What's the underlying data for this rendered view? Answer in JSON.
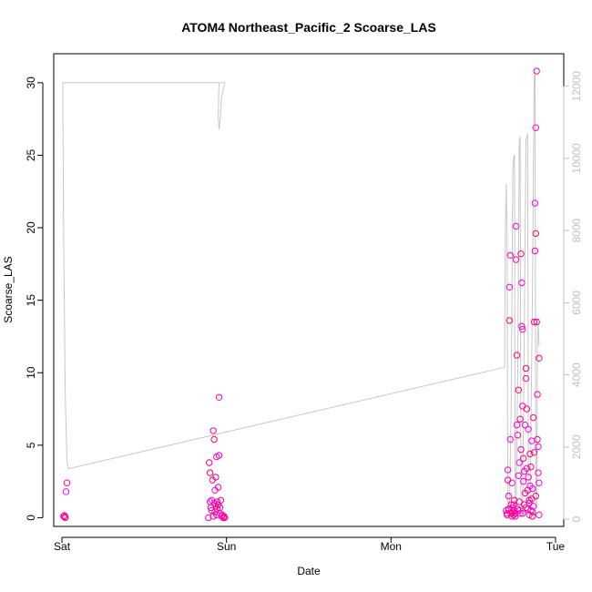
{
  "chart_data": {
    "type": "scatter",
    "title": "ATOM4 Northeast_Pacific_2 Scoarse_LAS",
    "xlabel": "Date",
    "ylabel": "Scoarse_LAS",
    "x_tick_labels": [
      "Sat",
      "Sun",
      "Mon",
      "Tue"
    ],
    "x_range_days": [
      -0.05,
      3.05
    ],
    "y_ticks": [
      0,
      5,
      10,
      15,
      20,
      25,
      30
    ],
    "ylim": [
      -0.6,
      32.0
    ],
    "y2_ticks": [
      0,
      2000,
      4000,
      6000,
      8000,
      10000,
      12000
    ],
    "y2lim": [
      -200,
      12900
    ],
    "grid": false,
    "line_color": "#c8c8c8",
    "right_axis_color": "#c0c0c0",
    "series": [
      {
        "marker": "open-circle",
        "color_range": [
          "#ff00ff",
          "#ff0050"
        ],
        "points": [
          [
            0.01,
            0.1
          ],
          [
            0.02,
            0.0
          ],
          [
            0.015,
            0.15
          ],
          [
            0.025,
            1.8
          ],
          [
            0.03,
            2.4
          ],
          [
            0.02,
            0.05
          ],
          [
            0.89,
            0.0
          ],
          [
            0.895,
            3.8
          ],
          [
            0.9,
            3.1
          ],
          [
            0.9,
            1.1
          ],
          [
            0.905,
            0.7
          ],
          [
            0.91,
            1.2
          ],
          [
            0.91,
            0.5
          ],
          [
            0.915,
            2.6
          ],
          [
            0.92,
            0.1
          ],
          [
            0.92,
            6.0
          ],
          [
            0.925,
            5.4
          ],
          [
            0.925,
            1.0
          ],
          [
            0.93,
            0.4
          ],
          [
            0.93,
            1.9
          ],
          [
            0.935,
            0.8
          ],
          [
            0.935,
            2.8
          ],
          [
            0.94,
            4.2
          ],
          [
            0.94,
            0.2
          ],
          [
            0.945,
            0.6
          ],
          [
            0.945,
            1.1
          ],
          [
            0.95,
            2.1
          ],
          [
            0.95,
            0.9
          ],
          [
            0.955,
            4.3
          ],
          [
            0.955,
            8.3
          ],
          [
            0.96,
            0.3
          ],
          [
            0.96,
            0.7
          ],
          [
            0.965,
            1.2
          ],
          [
            0.97,
            0.1
          ],
          [
            0.975,
            0.2
          ],
          [
            0.98,
            0.0
          ],
          [
            0.985,
            0.1
          ],
          [
            0.99,
            0.0
          ],
          [
            2.7,
            0.5
          ],
          [
            2.705,
            0.3
          ],
          [
            2.71,
            2.6
          ],
          [
            2.71,
            3.3
          ],
          [
            2.715,
            1.5
          ],
          [
            2.72,
            13.6
          ],
          [
            2.72,
            15.9
          ],
          [
            2.725,
            18.1
          ],
          [
            2.725,
            5.4
          ],
          [
            2.73,
            0.3
          ],
          [
            2.73,
            0.9
          ],
          [
            2.735,
            2.4
          ],
          [
            2.735,
            0.1
          ],
          [
            2.74,
            0.4
          ],
          [
            2.74,
            0.7
          ],
          [
            2.745,
            0.2
          ],
          [
            2.75,
            1.2
          ],
          [
            2.75,
            0.5
          ],
          [
            2.755,
            0.3
          ],
          [
            2.76,
            20.1
          ],
          [
            2.76,
            17.8
          ],
          [
            2.765,
            11.2
          ],
          [
            2.765,
            6.4
          ],
          [
            2.77,
            5.7
          ],
          [
            2.77,
            0.6
          ],
          [
            2.775,
            2.9
          ],
          [
            2.775,
            8.8
          ],
          [
            2.78,
            3.8
          ],
          [
            2.78,
            1.1
          ],
          [
            2.785,
            6.8
          ],
          [
            2.785,
            0.3
          ],
          [
            2.79,
            4.7
          ],
          [
            2.79,
            18.2
          ],
          [
            2.795,
            16.2
          ],
          [
            2.795,
            13.2
          ],
          [
            2.8,
            13.0
          ],
          [
            2.8,
            7.7
          ],
          [
            2.805,
            4.1
          ],
          [
            2.805,
            2.5
          ],
          [
            2.81,
            3.2
          ],
          [
            2.81,
            0.9
          ],
          [
            2.815,
            6.4
          ],
          [
            2.815,
            1.7
          ],
          [
            2.82,
            10.3
          ],
          [
            2.82,
            9.6
          ],
          [
            2.825,
            7.5
          ],
          [
            2.825,
            3.4
          ],
          [
            2.83,
            0.6
          ],
          [
            2.83,
            1.9
          ],
          [
            2.835,
            6.1
          ],
          [
            2.835,
            2.8
          ],
          [
            2.84,
            1.2
          ],
          [
            2.84,
            0.2
          ],
          [
            2.845,
            4.4
          ],
          [
            2.845,
            2.2
          ],
          [
            2.85,
            0.5
          ],
          [
            2.85,
            3.5
          ],
          [
            2.855,
            5.3
          ],
          [
            2.855,
            1.3
          ],
          [
            2.86,
            0.1
          ],
          [
            2.86,
            2.0
          ],
          [
            2.865,
            6.9
          ],
          [
            2.865,
            0.8
          ],
          [
            2.87,
            13.5
          ],
          [
            2.87,
            4.5
          ],
          [
            2.875,
            21.7
          ],
          [
            2.875,
            18.4
          ],
          [
            2.88,
            19.6
          ],
          [
            2.88,
            26.9
          ],
          [
            2.885,
            30.8
          ],
          [
            2.885,
            13.5
          ],
          [
            2.89,
            8.5
          ],
          [
            2.89,
            5.4
          ],
          [
            2.895,
            4.9
          ],
          [
            2.895,
            3.1
          ],
          [
            2.9,
            11.0
          ],
          [
            2.9,
            2.4
          ],
          [
            2.705,
            0.2
          ],
          [
            2.715,
            0.6
          ],
          [
            2.745,
            0.9
          ],
          [
            2.755,
            0.1
          ],
          [
            2.78,
            0.5
          ],
          [
            2.8,
            0.3
          ],
          [
            2.82,
            0.7
          ],
          [
            2.84,
            1.0
          ],
          [
            2.86,
            0.4
          ],
          [
            2.88,
            1.5
          ],
          [
            2.9,
            0.2
          ]
        ]
      }
    ],
    "line_series": {
      "axis": "right",
      "points": [
        [
          0.0,
          12100
        ],
        [
          0.99,
          12100
        ],
        [
          0.99,
          12100
        ],
        [
          0.97,
          11700
        ],
        [
          0.96,
          11000
        ],
        [
          0.955,
          10800
        ],
        [
          0.95,
          11200
        ],
        [
          0.955,
          12100
        ],
        [
          0.96,
          12100
        ],
        [
          0.005,
          12100
        ],
        [
          0.01,
          8000
        ],
        [
          0.02,
          3500
        ],
        [
          0.03,
          1600
        ],
        [
          0.04,
          1400
        ],
        [
          2.68,
          4200
        ],
        [
          2.69,
          4200
        ],
        [
          2.695,
          8100
        ],
        [
          2.7,
          9300
        ],
        [
          2.705,
          8000
        ],
        [
          2.71,
          500
        ],
        [
          2.715,
          200
        ],
        [
          2.72,
          300
        ],
        [
          2.73,
          3000
        ],
        [
          2.74,
          9600
        ],
        [
          2.745,
          10000
        ],
        [
          2.75,
          10100
        ],
        [
          2.755,
          400
        ],
        [
          2.76,
          200
        ],
        [
          2.77,
          4000
        ],
        [
          2.78,
          10500
        ],
        [
          2.785,
          10600
        ],
        [
          2.79,
          600
        ],
        [
          2.8,
          300
        ],
        [
          2.81,
          5000
        ],
        [
          2.82,
          10500
        ],
        [
          2.83,
          10700
        ],
        [
          2.835,
          400
        ],
        [
          2.845,
          300
        ],
        [
          2.86,
          6500
        ],
        [
          2.87,
          12200
        ],
        [
          2.875,
          12400
        ],
        [
          2.88,
          600
        ],
        [
          2.885,
          300
        ],
        [
          2.89,
          5000
        ],
        [
          2.895,
          5400
        ],
        [
          2.9,
          4800
        ]
      ]
    }
  }
}
